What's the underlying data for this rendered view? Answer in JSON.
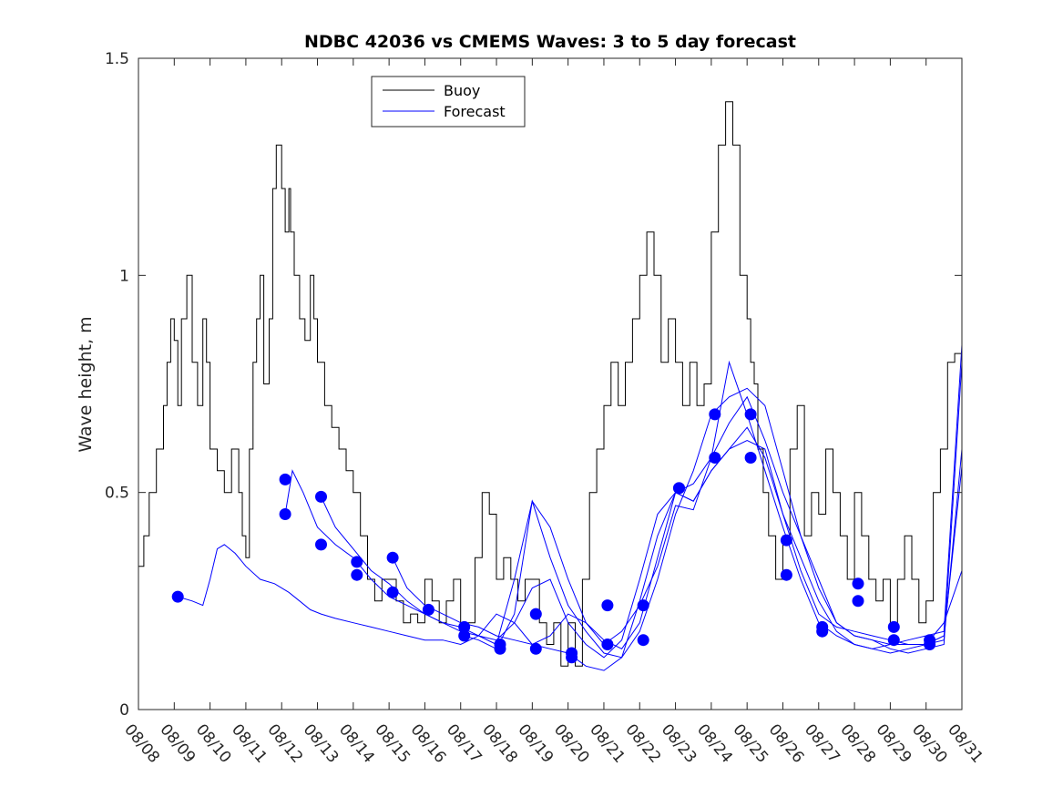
{
  "chart_data": {
    "type": "line",
    "title": "NDBC 42036 vs CMEMS Waves: 3 to 5 day forecast",
    "ylabel": "Wave height, m",
    "xlabel": "",
    "ylim": [
      0,
      1.5
    ],
    "xlim": [
      0,
      23
    ],
    "yticks": [
      0,
      0.5,
      1,
      1.5
    ],
    "ytick_labels": [
      "0",
      "0.5",
      "1",
      "1.5"
    ],
    "xtick_labels": [
      "08/08",
      "08/09",
      "08/10",
      "08/11",
      "08/12",
      "08/13",
      "08/14",
      "08/15",
      "08/16",
      "08/17",
      "08/18",
      "08/19",
      "08/20",
      "08/21",
      "08/22",
      "08/23",
      "08/24",
      "08/25",
      "08/26",
      "08/27",
      "08/28",
      "08/29",
      "08/30",
      "08/31"
    ],
    "legend": {
      "position": "top-center",
      "entries": [
        "Buoy",
        "Forecast"
      ]
    },
    "colors": {
      "buoy": "#000000",
      "forecast": "#0000ff",
      "axis": "#262626"
    },
    "buoy": {
      "name": "Buoy",
      "x": [
        0,
        0.15,
        0.3,
        0.5,
        0.7,
        0.8,
        0.9,
        1.0,
        1.1,
        1.2,
        1.35,
        1.5,
        1.65,
        1.8,
        1.9,
        2.0,
        2.2,
        2.4,
        2.6,
        2.8,
        2.9,
        3.0,
        3.1,
        3.2,
        3.3,
        3.4,
        3.5,
        3.65,
        3.75,
        3.85,
        4.0,
        4.1,
        4.2,
        4.25,
        4.35,
        4.5,
        4.65,
        4.8,
        4.9,
        5.0,
        5.2,
        5.4,
        5.6,
        5.8,
        6.0,
        6.2,
        6.4,
        6.6,
        6.8,
        7.0,
        7.2,
        7.4,
        7.6,
        7.8,
        8.0,
        8.2,
        8.4,
        8.6,
        8.8,
        9.0,
        9.2,
        9.4,
        9.6,
        9.8,
        10.0,
        10.2,
        10.4,
        10.6,
        10.8,
        11.0,
        11.2,
        11.4,
        11.6,
        11.8,
        12.0,
        12.2,
        12.4,
        12.6,
        12.8,
        13.0,
        13.2,
        13.4,
        13.6,
        13.8,
        14.0,
        14.2,
        14.4,
        14.6,
        14.8,
        15.0,
        15.2,
        15.4,
        15.6,
        15.8,
        16.0,
        16.2,
        16.4,
        16.6,
        16.8,
        17.0,
        17.1,
        17.2,
        17.3,
        17.45,
        17.6,
        17.8,
        18.0,
        18.2,
        18.4,
        18.6,
        18.8,
        19.0,
        19.2,
        19.4,
        19.6,
        19.8,
        20.0,
        20.2,
        20.4,
        20.6,
        20.8,
        21.0,
        21.2,
        21.4,
        21.6,
        21.8,
        22.0,
        22.2,
        22.4,
        22.6,
        22.8,
        23.0
      ],
      "y": [
        0.33,
        0.4,
        0.5,
        0.6,
        0.7,
        0.8,
        0.9,
        0.85,
        0.7,
        0.9,
        1.0,
        0.8,
        0.7,
        0.9,
        0.8,
        0.6,
        0.55,
        0.5,
        0.6,
        0.5,
        0.4,
        0.35,
        0.6,
        0.8,
        0.9,
        1.0,
        0.75,
        0.9,
        1.2,
        1.3,
        1.2,
        1.1,
        1.2,
        1.1,
        1.0,
        0.9,
        0.85,
        1.0,
        0.9,
        0.8,
        0.7,
        0.65,
        0.6,
        0.55,
        0.5,
        0.4,
        0.3,
        0.25,
        0.3,
        0.3,
        0.25,
        0.2,
        0.22,
        0.2,
        0.3,
        0.25,
        0.2,
        0.25,
        0.3,
        0.2,
        0.2,
        0.35,
        0.5,
        0.45,
        0.3,
        0.35,
        0.3,
        0.25,
        0.3,
        0.3,
        0.2,
        0.15,
        0.2,
        0.1,
        0.2,
        0.1,
        0.3,
        0.5,
        0.6,
        0.7,
        0.8,
        0.7,
        0.8,
        0.9,
        1.0,
        1.1,
        1.0,
        0.8,
        0.9,
        0.8,
        0.7,
        0.8,
        0.7,
        0.75,
        1.1,
        1.3,
        1.4,
        1.3,
        1.0,
        0.9,
        0.8,
        0.75,
        0.6,
        0.5,
        0.4,
        0.3,
        0.4,
        0.6,
        0.7,
        0.4,
        0.5,
        0.45,
        0.6,
        0.5,
        0.4,
        0.3,
        0.5,
        0.4,
        0.3,
        0.25,
        0.3,
        0.2,
        0.3,
        0.4,
        0.3,
        0.2,
        0.25,
        0.5,
        0.6,
        0.8,
        0.82,
        0.83
      ]
    },
    "forecast_series": [
      {
        "name": "Forecast",
        "x": [
          1.1,
          1.5,
          1.8,
          2.0,
          2.2,
          2.4,
          2.7,
          3.0,
          3.4,
          3.8,
          4.2,
          4.5,
          4.8,
          5.1,
          5.5,
          6.0,
          6.5,
          7.0,
          7.5,
          8.0,
          8.5,
          9.0,
          9.5,
          10.0,
          10.5,
          11.0,
          11.5,
          12.0,
          12.5,
          13.0,
          13.5,
          14.0,
          14.5,
          15.0,
          15.5,
          16.0,
          16.5,
          17.0,
          17.5,
          18.0,
          18.5,
          19.0,
          19.5,
          20.0,
          20.5,
          21.0,
          21.5,
          22.0,
          22.5,
          23.0
        ],
        "y": [
          0.26,
          0.25,
          0.24,
          0.3,
          0.37,
          0.38,
          0.36,
          0.33,
          0.3,
          0.29,
          0.27,
          0.25,
          0.23,
          0.22,
          0.21,
          0.2,
          0.19,
          0.18,
          0.17,
          0.16,
          0.16,
          0.15,
          0.17,
          0.22,
          0.2,
          0.15,
          0.14,
          0.13,
          0.1,
          0.09,
          0.12,
          0.25,
          0.4,
          0.5,
          0.48,
          0.55,
          0.6,
          0.65,
          0.58,
          0.45,
          0.35,
          0.25,
          0.18,
          0.15,
          0.14,
          0.15,
          0.15,
          0.15,
          0.16,
          0.6
        ]
      },
      {
        "name": "Forecast",
        "x": [
          4.1,
          4.3,
          4.6,
          5.0,
          5.5,
          6.0,
          6.5,
          7.0,
          7.5,
          8.0,
          8.5,
          9.0,
          9.5,
          10.0,
          10.5,
          11.0,
          11.5,
          12.0,
          12.5,
          13.0,
          13.5,
          14.0,
          14.5,
          15.0,
          15.5,
          16.0,
          16.5,
          17.0,
          17.5,
          18.0,
          18.5,
          19.0,
          19.5,
          20.0,
          20.5,
          21.0,
          21.5,
          22.0,
          22.5,
          23.0
        ],
        "y": [
          0.45,
          0.55,
          0.5,
          0.42,
          0.38,
          0.35,
          0.3,
          0.26,
          0.24,
          0.22,
          0.2,
          0.19,
          0.17,
          0.16,
          0.2,
          0.28,
          0.3,
          0.2,
          0.15,
          0.12,
          0.16,
          0.3,
          0.45,
          0.5,
          0.52,
          0.58,
          0.66,
          0.72,
          0.62,
          0.5,
          0.4,
          0.3,
          0.2,
          0.17,
          0.16,
          0.14,
          0.13,
          0.14,
          0.15,
          0.8
        ]
      },
      {
        "name": "Forecast",
        "x": [
          5.1,
          5.5,
          6.0,
          6.5,
          7.0,
          7.5,
          8.0,
          8.5,
          9.0,
          9.5,
          10.0,
          10.5,
          11.0,
          11.5,
          12.0,
          12.5,
          13.0,
          13.5,
          14.0,
          14.5,
          15.0,
          15.5,
          16.0,
          16.5,
          17.0,
          17.5,
          18.0,
          18.5,
          19.0,
          19.5,
          20.0,
          20.5,
          21.0,
          21.5,
          22.0,
          22.5,
          23.0
        ],
        "y": [
          0.49,
          0.42,
          0.37,
          0.32,
          0.29,
          0.25,
          0.22,
          0.2,
          0.18,
          0.17,
          0.15,
          0.3,
          0.48,
          0.35,
          0.24,
          0.18,
          0.13,
          0.12,
          0.18,
          0.3,
          0.45,
          0.55,
          0.68,
          0.72,
          0.74,
          0.7,
          0.55,
          0.4,
          0.28,
          0.2,
          0.17,
          0.16,
          0.15,
          0.16,
          0.17,
          0.18,
          0.84
        ]
      },
      {
        "name": "Forecast",
        "x": [
          7.1,
          7.5,
          8.0,
          8.5,
          9.0,
          9.5,
          10.0,
          10.5,
          11.0,
          11.5,
          12.0,
          12.5,
          13.0,
          13.5,
          14.0,
          14.5,
          15.0,
          15.5,
          16.0,
          16.5,
          17.0,
          17.5,
          18.0,
          18.5,
          19.0,
          19.5,
          20.0,
          20.5,
          21.0,
          21.5,
          22.0,
          22.5,
          23.0
        ],
        "y": [
          0.35,
          0.28,
          0.24,
          0.22,
          0.2,
          0.19,
          0.17,
          0.16,
          0.15,
          0.17,
          0.22,
          0.2,
          0.16,
          0.14,
          0.2,
          0.35,
          0.5,
          0.48,
          0.55,
          0.6,
          0.62,
          0.6,
          0.45,
          0.32,
          0.22,
          0.19,
          0.18,
          0.17,
          0.16,
          0.15,
          0.15,
          0.17,
          0.56
        ]
      },
      {
        "name": "Forecast",
        "x": [
          9.1,
          9.5,
          10.0,
          10.5,
          11.0,
          11.5,
          12.0,
          12.5,
          13.0,
          13.5,
          14.0,
          14.5,
          15.0,
          15.5,
          16.0,
          16.5,
          17.0,
          17.5,
          18.0,
          18.5,
          19.0,
          19.5,
          20.0,
          20.5,
          21.0,
          21.5,
          22.0,
          22.5,
          23.0
        ],
        "y": [
          0.17,
          0.16,
          0.14,
          0.22,
          0.48,
          0.42,
          0.3,
          0.2,
          0.15,
          0.18,
          0.24,
          0.33,
          0.47,
          0.46,
          0.58,
          0.8,
          0.68,
          0.55,
          0.42,
          0.3,
          0.2,
          0.17,
          0.15,
          0.14,
          0.13,
          0.14,
          0.15,
          0.2,
          0.32
        ]
      }
    ],
    "forecast_markers": {
      "x": [
        1.1,
        4.1,
        4.1,
        5.1,
        5.1,
        6.1,
        6.1,
        7.1,
        7.1,
        8.1,
        9.1,
        9.1,
        10.1,
        10.1,
        11.1,
        11.1,
        12.1,
        12.1,
        13.1,
        13.1,
        14.1,
        14.1,
        15.1,
        15.1,
        16.1,
        16.1,
        17.1,
        17.1,
        18.1,
        18.1,
        19.1,
        19.1,
        20.1,
        20.1,
        21.1,
        21.1,
        22.1,
        22.1
      ],
      "y": [
        0.26,
        0.53,
        0.45,
        0.49,
        0.38,
        0.34,
        0.31,
        0.35,
        0.27,
        0.23,
        0.19,
        0.17,
        0.15,
        0.14,
        0.22,
        0.14,
        0.13,
        0.12,
        0.24,
        0.15,
        0.24,
        0.16,
        0.51,
        0.51,
        0.68,
        0.58,
        0.68,
        0.58,
        0.39,
        0.31,
        0.19,
        0.18,
        0.29,
        0.25,
        0.19,
        0.16,
        0.16,
        0.15
      ]
    }
  }
}
